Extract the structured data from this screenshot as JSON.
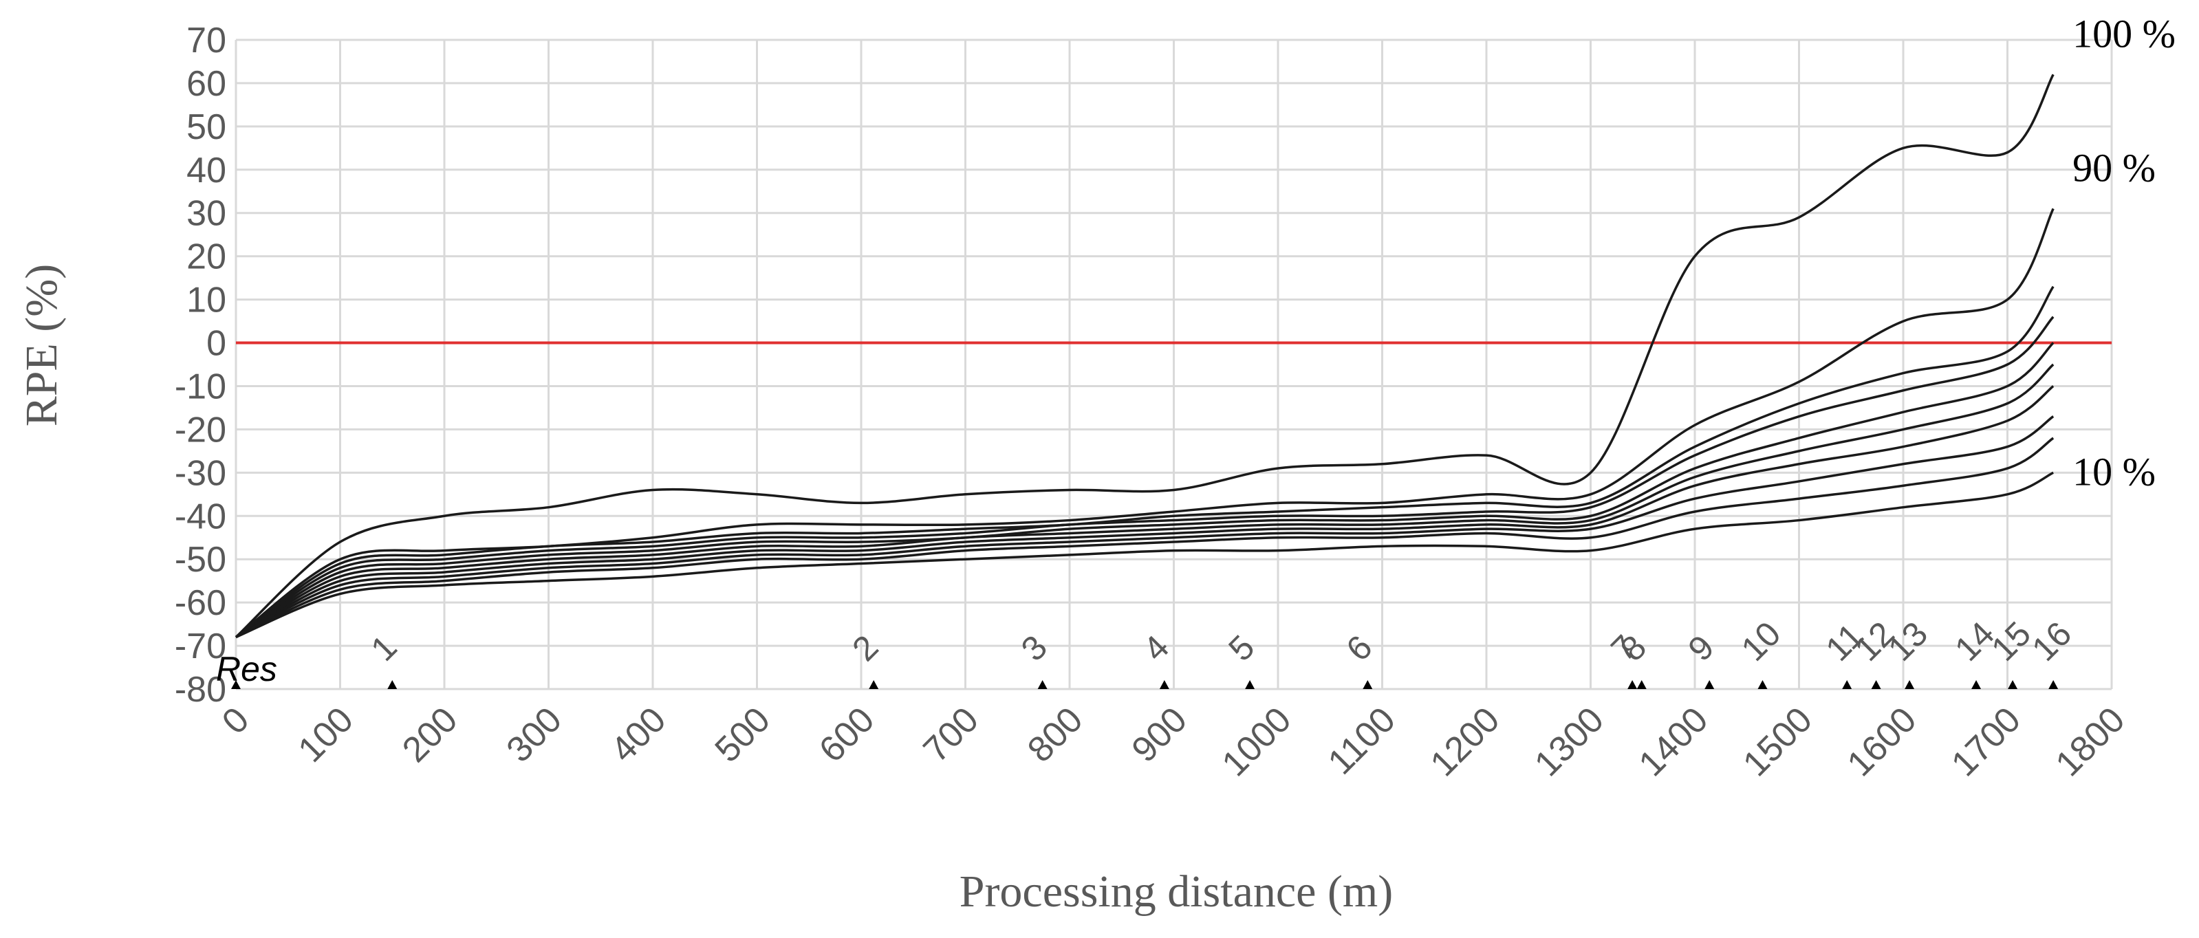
{
  "chart_data": {
    "type": "line",
    "xlabel": "Processing distance (m)",
    "ylabel": "RPE (%)",
    "xlim": [
      0,
      1800
    ],
    "ylim": [
      -80,
      70
    ],
    "x_ticks": [
      "0",
      "100",
      "200",
      "300",
      "400",
      "500",
      "600",
      "700",
      "800",
      "900",
      "1000",
      "1100",
      "1200",
      "1300",
      "1400",
      "1500",
      "1600",
      "1700",
      "1800"
    ],
    "y_ticks": [
      "-80",
      "-70",
      "-60",
      "-50",
      "-40",
      "-30",
      "-20",
      "-10",
      "0",
      "10",
      "20",
      "30",
      "40",
      "50",
      "60",
      "70"
    ],
    "grid": true,
    "reference_line": {
      "y": 0,
      "color": "#e03030"
    },
    "line_color": "#1a1a1a",
    "start_label": "Res",
    "markers": [
      {
        "label": "1",
        "x": 150
      },
      {
        "label": "2",
        "x": 612
      },
      {
        "label": "3",
        "x": 774
      },
      {
        "label": "4",
        "x": 891
      },
      {
        "label": "5",
        "x": 973
      },
      {
        "label": "6",
        "x": 1086
      },
      {
        "label": "7",
        "x": 1340
      },
      {
        "label": "8",
        "x": 1349
      },
      {
        "label": "9",
        "x": 1414
      },
      {
        "label": "10",
        "x": 1465
      },
      {
        "label": "11",
        "x": 1546
      },
      {
        "label": "12",
        "x": 1574
      },
      {
        "label": "13",
        "x": 1606
      },
      {
        "label": "14",
        "x": 1670
      },
      {
        "label": "15",
        "x": 1705
      },
      {
        "label": "16",
        "x": 1744
      }
    ],
    "series_labels": [
      {
        "text": "100 %",
        "series": 9
      },
      {
        "text": "90 %",
        "series": 8
      },
      {
        "text": "10 %",
        "series": 0
      }
    ],
    "x": [
      0,
      100,
      200,
      300,
      400,
      500,
      600,
      700,
      800,
      900,
      1000,
      1100,
      1200,
      1300,
      1400,
      1500,
      1600,
      1700,
      1744
    ],
    "series": [
      {
        "values": [
          -68,
          -58,
          -56,
          -55,
          -54,
          -52,
          -51,
          -50,
          -49,
          -48,
          -48,
          -47,
          -47,
          -48,
          -43,
          -41,
          -38,
          -35,
          -30
        ]
      },
      {
        "values": [
          -68,
          -57,
          -55,
          -53,
          -52,
          -50,
          -50,
          -48,
          -47,
          -46,
          -45,
          -45,
          -44,
          -45,
          -39,
          -36,
          -33,
          -29,
          -22
        ]
      },
      {
        "values": [
          -68,
          -56,
          -54,
          -52,
          -51,
          -49,
          -49,
          -47,
          -46,
          -45,
          -44,
          -44,
          -43,
          -43,
          -36,
          -32,
          -28,
          -24,
          -17
        ]
      },
      {
        "values": [
          -68,
          -55,
          -53,
          -51,
          -50,
          -48,
          -48,
          -46,
          -45,
          -44,
          -43,
          -43,
          -42,
          -42,
          -33,
          -28,
          -24,
          -18,
          -10
        ]
      },
      {
        "values": [
          -68,
          -54,
          -52,
          -50,
          -49,
          -47,
          -47,
          -45,
          -44,
          -43,
          -42,
          -42,
          -41,
          -41,
          -31,
          -25,
          -20,
          -14,
          -5
        ]
      },
      {
        "values": [
          -68,
          -53,
          -51,
          -49,
          -48,
          -46,
          -46,
          -45,
          -43,
          -42,
          -41,
          -41,
          -40,
          -40,
          -29,
          -22,
          -16,
          -10,
          0
        ]
      },
      {
        "values": [
          -68,
          -52,
          -50,
          -48,
          -47,
          -45,
          -45,
          -44,
          -42,
          -41,
          -40,
          -40,
          -39,
          -38,
          -26,
          -17,
          -11,
          -5,
          6
        ]
      },
      {
        "values": [
          -68,
          -51,
          -49,
          -47,
          -46,
          -44,
          -44,
          -43,
          -42,
          -40,
          -39,
          -38,
          -37,
          -37,
          -24,
          -14,
          -7,
          -2,
          13
        ]
      },
      {
        "values": [
          -68,
          -50,
          -48,
          -47,
          -45,
          -42,
          -42,
          -42,
          -41,
          -39,
          -37,
          -37,
          -35,
          -35,
          -19,
          -9,
          5,
          10,
          31
        ]
      },
      {
        "values": [
          -68,
          -46,
          -40,
          -38,
          -34,
          -35,
          -37,
          -35,
          -34,
          -34,
          -29,
          -28,
          -26,
          -30,
          20,
          29,
          45,
          44,
          62
        ]
      }
    ]
  }
}
